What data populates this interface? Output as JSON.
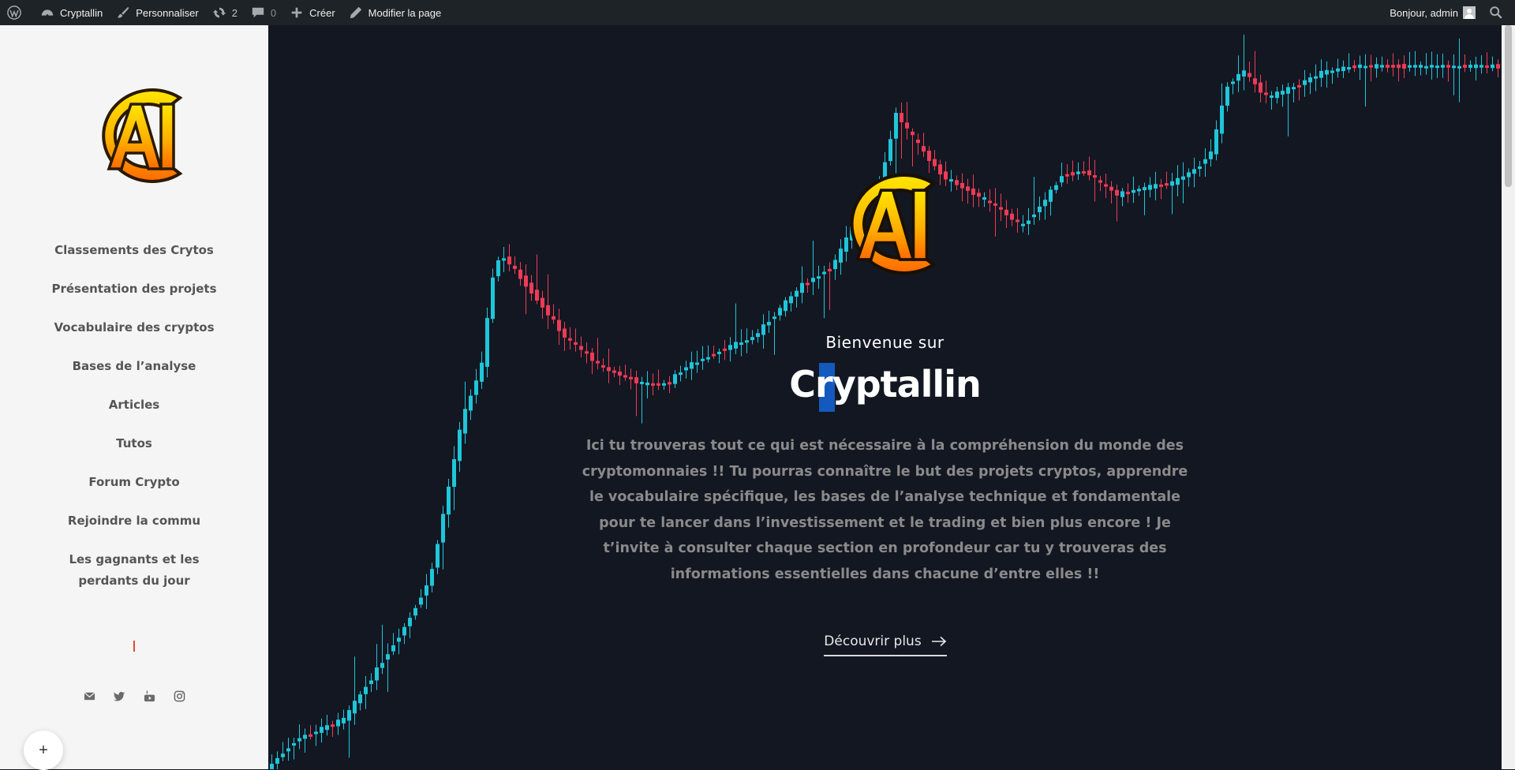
{
  "admin_bar": {
    "site_name": "Cryptallin",
    "customize": "Personnaliser",
    "updates_count": "2",
    "comments_count": "0",
    "new": "Créer",
    "edit_page": "Modifier la page",
    "greeting": "Bonjour, admin"
  },
  "sidebar": {
    "menu": [
      "Classements des Crytos",
      "Présentation des projets",
      "Vocabulaire des cryptos",
      "Bases de l’analyse",
      "Articles",
      "Tutos",
      "Forum Crypto",
      "Rejoindre la commu",
      "Les gagnants et les perdants du jour"
    ],
    "social_icons": [
      "envelope-icon",
      "twitter-icon",
      "youtube-icon",
      "instagram-icon"
    ],
    "plus_button": "+"
  },
  "hero": {
    "welcome": "Bienvenue sur",
    "title": "Cryptallin",
    "intro": "Ici tu trouveras tout ce qui est nécessaire à la compréhension du monde des cryptomonnaies !! Tu pourras connaître le but des projets cryptos, apprendre le vocabulaire spécifique, les bases de l’analyse technique et fondamentale pour te lancer dans l’investissement et le trading et bien plus encore ! Je t’invite à consulter chaque section en profondeur car tu y trouveras des informations essentielles dans chacune d’entre elles !!",
    "cta": "Découvrir plus"
  },
  "colors": {
    "up_candle": "#1fc6d9",
    "down_candle": "#ef3b55",
    "hero_bg": "#131722",
    "sidebar_bg": "#f5f5f5",
    "admin_bar_bg": "#1d2327"
  }
}
